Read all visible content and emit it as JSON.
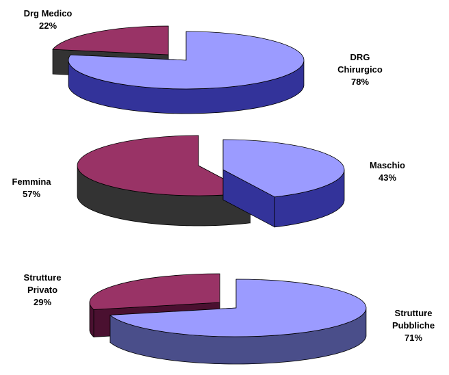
{
  "colors": {
    "light_top": "#9b9bff",
    "light_side": "#33339a",
    "dark_top": "#993366",
    "dark_side": "#333333",
    "outline": "#000000"
  },
  "chart_data": [
    {
      "type": "pie",
      "variant": "3d-exploded",
      "slices": [
        {
          "name_lines": [
            "Drg Medico"
          ],
          "value": 22,
          "value_label": "22%",
          "tone": "dark"
        },
        {
          "name_lines": [
            "DRG",
            "Chirurgico"
          ],
          "value": 78,
          "value_label": "78%",
          "tone": "light"
        }
      ]
    },
    {
      "type": "pie",
      "variant": "3d-exploded",
      "slices": [
        {
          "name_lines": [
            "Femmina"
          ],
          "value": 57,
          "value_label": "57%",
          "tone": "dark"
        },
        {
          "name_lines": [
            "Maschio"
          ],
          "value": 43,
          "value_label": "43%",
          "tone": "light"
        }
      ]
    },
    {
      "type": "pie",
      "variant": "3d-exploded",
      "slices": [
        {
          "name_lines": [
            "Strutture",
            "Privato"
          ],
          "value": 29,
          "value_label": "29%",
          "tone": "dark",
          "side_color": "#4a1030"
        },
        {
          "name_lines": [
            "Strutture",
            "Pubbliche"
          ],
          "value": 71,
          "value_label": "71%",
          "tone": "light",
          "side_color": "#4a4e8a"
        }
      ]
    }
  ]
}
